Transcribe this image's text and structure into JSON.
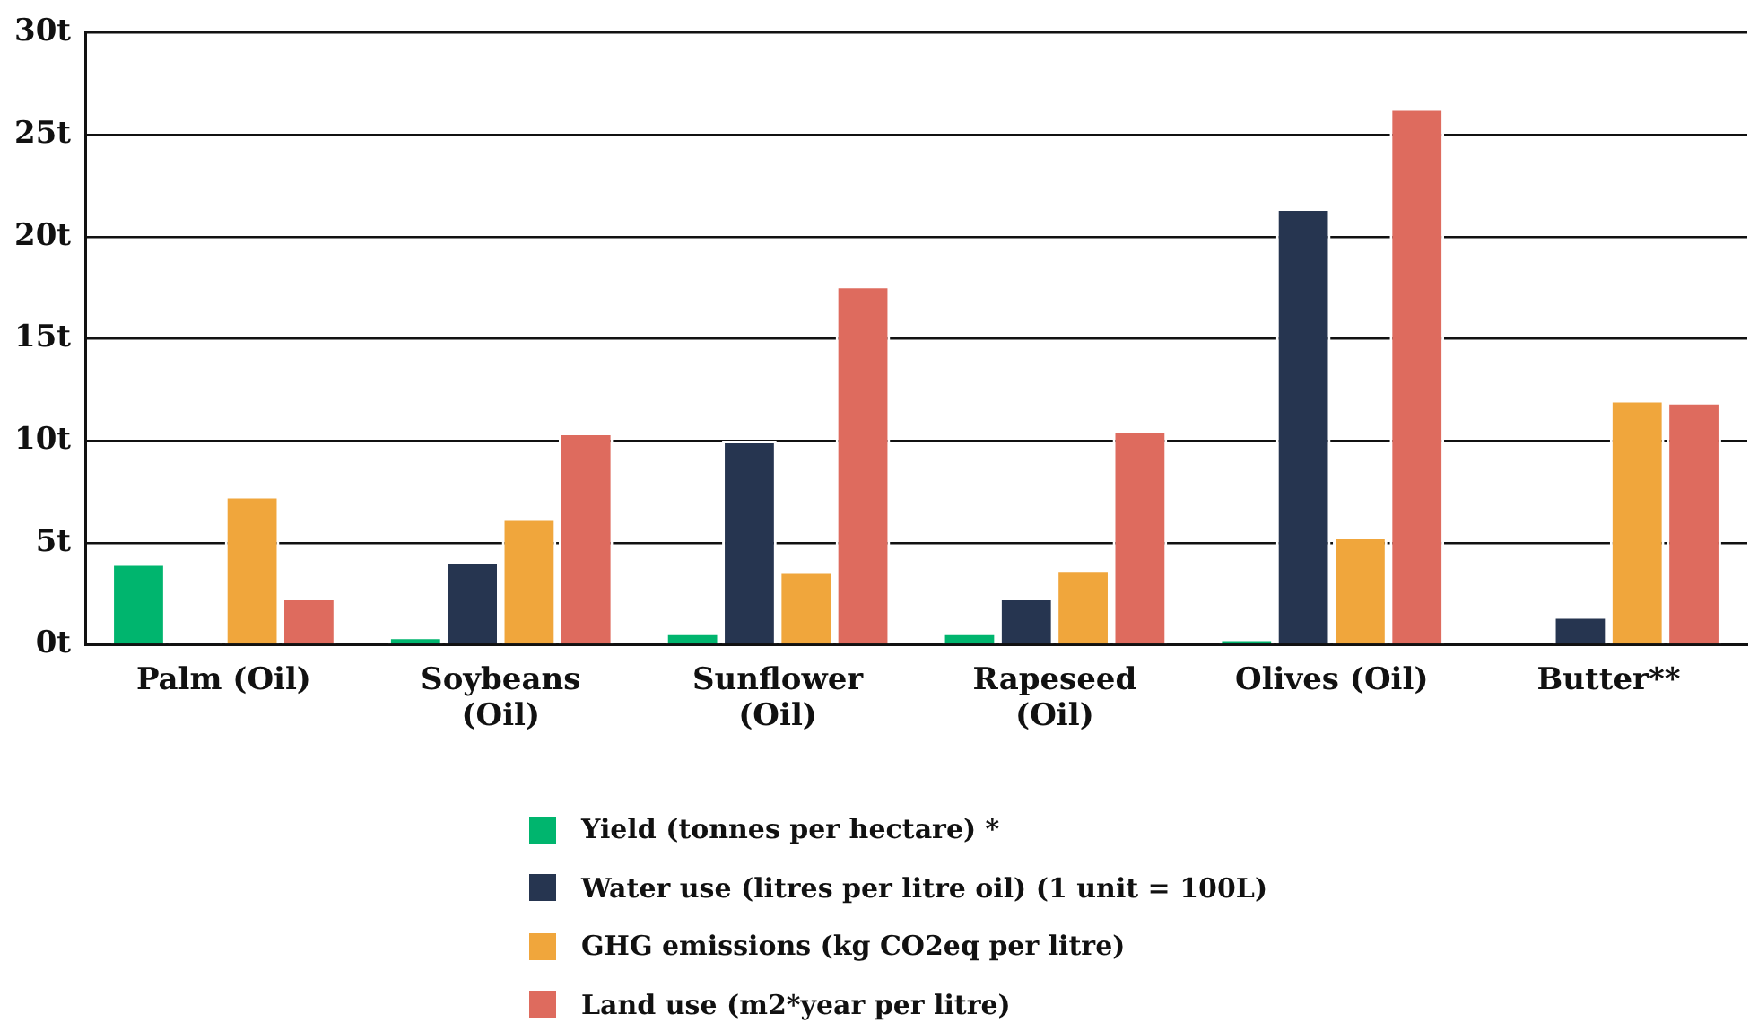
{
  "chart_data": {
    "type": "bar",
    "categories": [
      "Palm (Oil)",
      "Soybeans (Oil)",
      "Sunflower (Oil)",
      "Rapeseed (Oil)",
      "Olives (Oil)",
      "Butter**"
    ],
    "series": [
      {
        "name": "Yield (tonnes per hectare) *",
        "color": "#00b56e",
        "values": [
          4.0,
          0.4,
          0.6,
          0.6,
          0.3,
          null
        ]
      },
      {
        "name": "Water use (litres per litre oil) (1 unit = 100L)",
        "color": "#263550",
        "values": [
          0.1,
          4.1,
          10.0,
          2.3,
          21.4,
          1.4
        ]
      },
      {
        "name": "GHG emissions (kg CO2eq per litre)",
        "color": "#f0a63c",
        "values": [
          7.3,
          6.2,
          3.6,
          3.7,
          5.3,
          12.0
        ]
      },
      {
        "name": "Land use (m2*year per litre)",
        "color": "#de6b5e",
        "values": [
          2.3,
          10.4,
          17.6,
          10.5,
          26.3,
          11.9
        ]
      }
    ],
    "ylim": [
      0,
      30
    ],
    "yticks": [
      {
        "value": 0,
        "label": "0t"
      },
      {
        "value": 5,
        "label": "5t"
      },
      {
        "value": 10,
        "label": "10t"
      },
      {
        "value": 15,
        "label": "15t"
      },
      {
        "value": 20,
        "label": "20t"
      },
      {
        "value": 25,
        "label": "25t"
      },
      {
        "value": 30,
        "label": "30t"
      }
    ],
    "grid": "y",
    "legend": "bottom"
  }
}
